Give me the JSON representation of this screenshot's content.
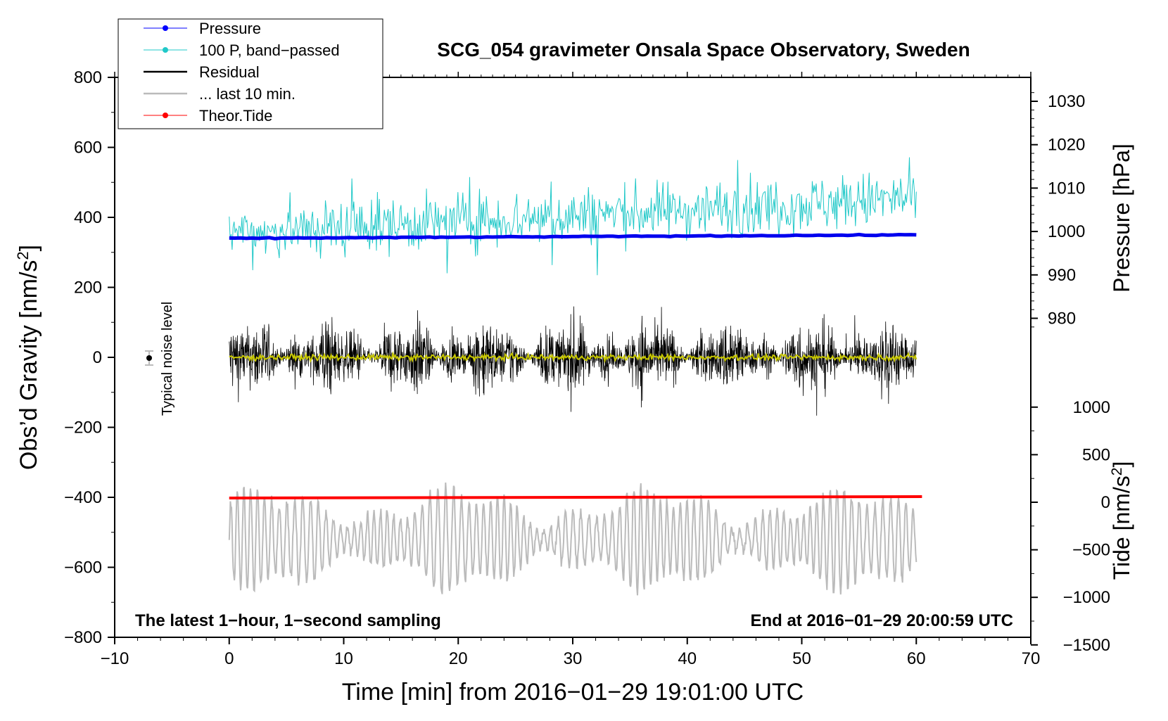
{
  "chart_data": {
    "type": "line",
    "title": "SCG_054 gravimeter Onsala Space Observatory, Sweden",
    "xlabel": "Time [min] from 2016−01−29 19:01:00 UTC",
    "ylabel_pre": "Obs’d Gravity [nm/s",
    "ylabel_sup": "2",
    "ylabel_post": "]",
    "xlim": [
      -10,
      70
    ],
    "ylim": [
      -800,
      800
    ],
    "x_ticks": [
      -10,
      0,
      10,
      20,
      30,
      40,
      50,
      60,
      70
    ],
    "x_tick_labels": [
      "−10",
      "0",
      "10",
      "20",
      "30",
      "40",
      "50",
      "60",
      "70"
    ],
    "y_ticks": [
      800,
      600,
      400,
      200,
      0,
      -200,
      -400,
      -600,
      -800
    ],
    "y_tick_labels": [
      "800",
      "600",
      "400",
      "200",
      "0",
      "−200",
      "−400",
      "−600",
      "−800"
    ],
    "pressure_axis": {
      "label": "Pressure [hPa]",
      "ticks": [
        1030,
        1020,
        1010,
        1000,
        990,
        980
      ],
      "tick_labels": [
        "1030",
        "1020",
        "1010",
        "1000",
        "990",
        "980"
      ]
    },
    "tide_axis": {
      "label_pre": "Tide [nm/s",
      "label_sup": "2",
      "label_post": "]",
      "ticks": [
        1000,
        500,
        0,
        -500,
        -1000,
        -1500
      ],
      "tick_labels": [
        "1000",
        "500",
        "0",
        "−500",
        "−1000",
        "−1500"
      ]
    },
    "legend": {
      "position": "top-left",
      "entries": [
        {
          "label": "Pressure",
          "color": "#0000ff",
          "marker": true
        },
        {
          "label": "100 P, band−passed",
          "color": "#20c8c8",
          "marker": true
        },
        {
          "label": "Residual",
          "color": "#000000",
          "marker": false
        },
        {
          "label": "... last 10 min.",
          "color": "#bbbbbb",
          "marker": false
        },
        {
          "label": "Theor.Tide",
          "color": "#ff0000",
          "marker": true
        }
      ]
    },
    "annotations": {
      "left": "The latest 1−hour, 1−second sampling",
      "right": "End at 2016−01−29 20:00:59 UTC",
      "noise_label": "Typical noise level",
      "noise_marker": {
        "x": -7,
        "y": 0,
        "err": 20
      }
    },
    "series": [
      {
        "name": "Pressure",
        "color": "#0000ee",
        "x_range": [
          0,
          60
        ],
        "start": 340,
        "end": 350,
        "unit": "nm/s2 plotting scale"
      },
      {
        "name": "100 P, band−passed",
        "color": "#20c8c8",
        "x_range": [
          0,
          60
        ],
        "start_mean": 355,
        "end_mean": 455,
        "spread": 50
      },
      {
        "name": "Residual",
        "color": "#000000",
        "x_range": [
          0,
          60
        ],
        "mean": 0,
        "spread": 110
      },
      {
        "name": "... last 10 min.",
        "color": "#bbbbbb",
        "x_range": [
          0,
          60
        ],
        "mean": -520,
        "spread": 130
      },
      {
        "name": "Theor.Tide",
        "color": "#ff0000",
        "x_range": [
          0,
          60.5
        ],
        "start": -402,
        "end": -398
      },
      {
        "name": "Residual trend",
        "color": "#c8c800",
        "x_range": [
          0,
          60
        ],
        "mean": 0,
        "spread": 4
      }
    ]
  }
}
